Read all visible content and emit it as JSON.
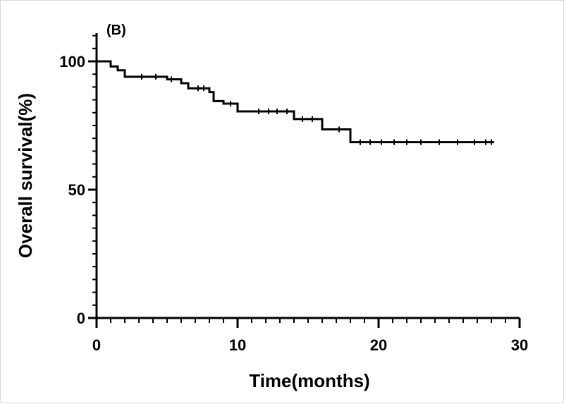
{
  "chart_data": {
    "type": "line",
    "panel_label": "(B)",
    "xlabel": "Time(months)",
    "ylabel": "Overall survival(%)",
    "xlim": [
      0,
      30
    ],
    "ylim": [
      0,
      100
    ],
    "x_ticks": [
      0,
      10,
      20,
      30
    ],
    "y_ticks": [
      0,
      50,
      100
    ],
    "grid": false,
    "series": [
      {
        "step": true,
        "color": "#000000",
        "points": [
          [
            0,
            100
          ],
          [
            1,
            100
          ],
          [
            1,
            98
          ],
          [
            1.5,
            98
          ],
          [
            1.5,
            96.5
          ],
          [
            2,
            96.5
          ],
          [
            2,
            94
          ],
          [
            5,
            94
          ],
          [
            5,
            93
          ],
          [
            6,
            93
          ],
          [
            6,
            91.5
          ],
          [
            6.5,
            91.5
          ],
          [
            6.5,
            89.5
          ],
          [
            8,
            89.5
          ],
          [
            8,
            88
          ],
          [
            8.3,
            88
          ],
          [
            8.3,
            84.5
          ],
          [
            9,
            84.5
          ],
          [
            9,
            83.5
          ],
          [
            10,
            83.5
          ],
          [
            10,
            80.5
          ],
          [
            14,
            80.5
          ],
          [
            14,
            77.5
          ],
          [
            16,
            77.5
          ],
          [
            16,
            73.5
          ],
          [
            18,
            73.5
          ],
          [
            18,
            68.5
          ],
          [
            28.2,
            68.5
          ]
        ],
        "censor_x": [
          3.2,
          4.2,
          5.3,
          7.2,
          7.6,
          9.5,
          11.5,
          12.2,
          12.8,
          13.5,
          14.6,
          15.3,
          17.2,
          18.7,
          19.4,
          20.2,
          21.1,
          22.0,
          23.0,
          24.3,
          25.6,
          26.8,
          27.6,
          28.0
        ]
      }
    ]
  }
}
